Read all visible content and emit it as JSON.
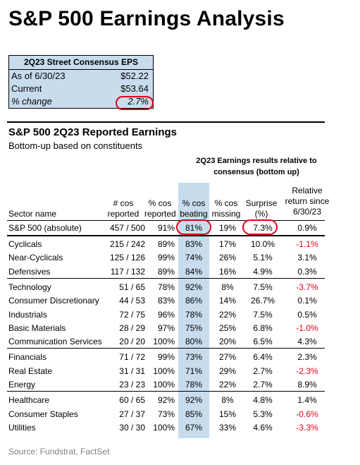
{
  "title": "S&P 500 Earnings Analysis",
  "eps_box": {
    "header": "2Q23 Street Consensus EPS",
    "rows": [
      {
        "label": "As of 6/30/23",
        "value": "$52.22"
      },
      {
        "label": "Current",
        "value": "$53.64"
      },
      {
        "label": "% change",
        "value": "2.7%"
      }
    ]
  },
  "table": {
    "title": "S&P 500 2Q23 Reported Earnings",
    "subtitle": "Bottom-up based on constituents",
    "group_header": "2Q23 Earnings results relative to consensus (bottom up)",
    "columns": {
      "sector": "Sector name",
      "reported": "# cos reported",
      "pct_reported": "% cos reported",
      "beating": "% cos beating",
      "missing": "% cos missing",
      "surprise": "Surprise (%)",
      "relative": "Relative return since 6/30/23"
    },
    "total": {
      "sector": "S&P 500 (absolute)",
      "reported": "457 / 500",
      "pct_reported": "91%",
      "beating": "81%",
      "missing": "19%",
      "surprise": "7.3%",
      "relative": "0.9%"
    },
    "groups": [
      [
        {
          "sector": "Cyclicals",
          "reported": "215 / 242",
          "pct_reported": "89%",
          "beating": "83%",
          "missing": "17%",
          "surprise": "10.0%",
          "relative": "-1.1%"
        },
        {
          "sector": "Near-Cyclicals",
          "reported": "125 / 126",
          "pct_reported": "99%",
          "beating": "74%",
          "missing": "26%",
          "surprise": "5.1%",
          "relative": "3.1%"
        },
        {
          "sector": "Defensives",
          "reported": "117 / 132",
          "pct_reported": "89%",
          "beating": "84%",
          "missing": "16%",
          "surprise": "4.9%",
          "relative": "0.3%"
        }
      ],
      [
        {
          "sector": "Technology",
          "reported": "51 / 65",
          "pct_reported": "78%",
          "beating": "92%",
          "missing": "8%",
          "surprise": "7.5%",
          "relative": "-3.7%"
        },
        {
          "sector": "Consumer Discretionary",
          "reported": "44 / 53",
          "pct_reported": "83%",
          "beating": "86%",
          "missing": "14%",
          "surprise": "26.7%",
          "relative": "0.1%"
        },
        {
          "sector": "Industrials",
          "reported": "72 / 75",
          "pct_reported": "96%",
          "beating": "78%",
          "missing": "22%",
          "surprise": "7.5%",
          "relative": "0.5%"
        },
        {
          "sector": "Basic Materials",
          "reported": "28 / 29",
          "pct_reported": "97%",
          "beating": "75%",
          "missing": "25%",
          "surprise": "6.8%",
          "relative": "-1.0%"
        },
        {
          "sector": "Communication Services",
          "reported": "20 / 20",
          "pct_reported": "100%",
          "beating": "80%",
          "missing": "20%",
          "surprise": "6.5%",
          "relative": "4.3%"
        }
      ],
      [
        {
          "sector": "Financials",
          "reported": "71 / 72",
          "pct_reported": "99%",
          "beating": "73%",
          "missing": "27%",
          "surprise": "6.4%",
          "relative": "2.3%"
        },
        {
          "sector": "Real Estate",
          "reported": "31 / 31",
          "pct_reported": "100%",
          "beating": "71%",
          "missing": "29%",
          "surprise": "2.7%",
          "relative": "-2.3%"
        },
        {
          "sector": "Energy",
          "reported": "23 / 23",
          "pct_reported": "100%",
          "beating": "78%",
          "missing": "22%",
          "surprise": "2.7%",
          "relative": "8.9%"
        }
      ],
      [
        {
          "sector": "Healthcare",
          "reported": "60 / 65",
          "pct_reported": "92%",
          "beating": "92%",
          "missing": "8%",
          "surprise": "4.8%",
          "relative": "1.4%"
        },
        {
          "sector": "Consumer Staples",
          "reported": "27 / 37",
          "pct_reported": "73%",
          "beating": "85%",
          "missing": "15%",
          "surprise": "5.3%",
          "relative": "-0.6%"
        },
        {
          "sector": "Utilities",
          "reported": "30 / 30",
          "pct_reported": "100%",
          "beating": "67%",
          "missing": "33%",
          "surprise": "4.6%",
          "relative": "-3.3%"
        }
      ]
    ]
  },
  "source": "Source: Fundstrat, FactSet",
  "colors": {
    "highlight": "#c9dcee",
    "negative": "#e0001b",
    "oval": "#e0001b"
  }
}
